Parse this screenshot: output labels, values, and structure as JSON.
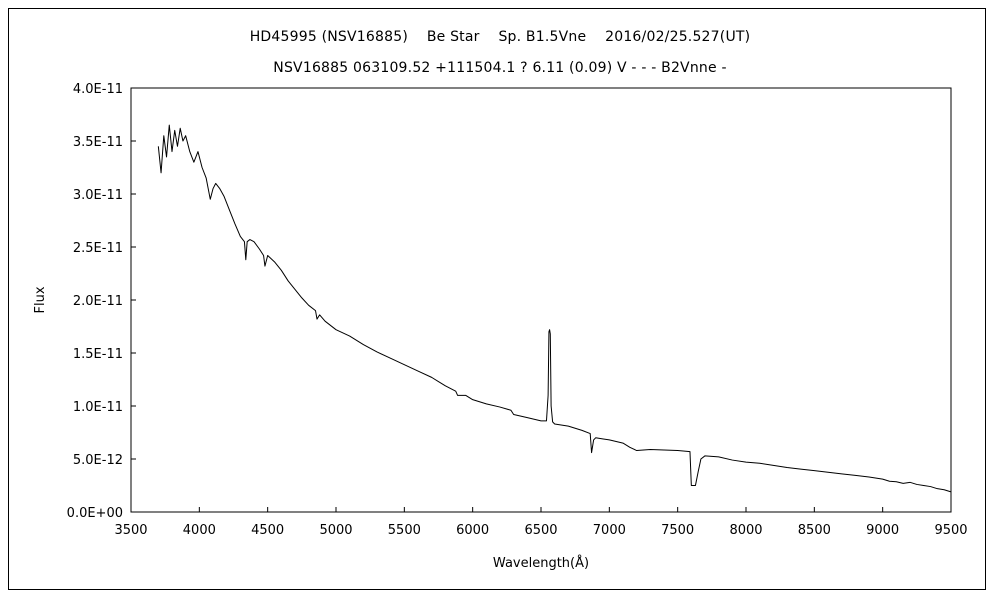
{
  "chart_data": {
    "type": "line",
    "title": "HD45995 (NSV16885)　 Be Star　 Sp. B1.5Vne　 2016/02/25.527(UT)",
    "subtitle": "NSV16885 063109.52 +111504.1 ? 6.11 (0.09) V - - - B2Vnne -",
    "xlabel": "Wavelength(Å)",
    "ylabel": "Flux",
    "xlim": [
      3500,
      9500
    ],
    "ylim": [
      0,
      4e-11
    ],
    "x_ticks": [
      3500,
      4000,
      4500,
      5000,
      5500,
      6000,
      6500,
      7000,
      7500,
      8000,
      8500,
      9000,
      9500
    ],
    "y_ticks": [
      0,
      5e-12,
      1e-11,
      1.5e-11,
      2e-11,
      2.5e-11,
      3e-11,
      3.5e-11,
      4e-11
    ],
    "x_tick_labels": [
      "3500",
      "4000",
      "4500",
      "5000",
      "5500",
      "6000",
      "6500",
      "7000",
      "7500",
      "8000",
      "8500",
      "9000",
      "9500"
    ],
    "y_tick_labels": [
      "0.0E+00",
      "5.0E-12",
      "1.0E-11",
      "1.5E-11",
      "2.0E-11",
      "2.5E-11",
      "3.0E-11",
      "3.5E-11",
      "4.0E-11"
    ],
    "grid": false,
    "series": [
      {
        "color": "#000000",
        "x": [
          3700,
          3720,
          3740,
          3760,
          3780,
          3800,
          3820,
          3840,
          3860,
          3880,
          3900,
          3930,
          3960,
          3990,
          4020,
          4050,
          4080,
          4100,
          4120,
          4150,
          4180,
          4220,
          4260,
          4300,
          4330,
          4340,
          4350,
          4370,
          4400,
          4440,
          4470,
          4480,
          4500,
          4550,
          4600,
          4650,
          4700,
          4750,
          4800,
          4850,
          4861,
          4880,
          4920,
          4960,
          5000,
          5100,
          5200,
          5300,
          5400,
          5500,
          5600,
          5700,
          5800,
          5876,
          5890,
          5950,
          6000,
          6100,
          6200,
          6280,
          6300,
          6400,
          6500,
          6540,
          6552,
          6558,
          6563,
          6568,
          6574,
          6585,
          6600,
          6700,
          6800,
          6860,
          6870,
          6885,
          6900,
          6950,
          7000,
          7100,
          7150,
          7200,
          7300,
          7400,
          7500,
          7590,
          7600,
          7630,
          7650,
          7670,
          7700,
          7800,
          7900,
          8000,
          8100,
          8200,
          8300,
          8400,
          8500,
          8600,
          8700,
          8800,
          8900,
          9000,
          9050,
          9100,
          9150,
          9200,
          9250,
          9300,
          9350,
          9400,
          9450,
          9500
        ],
        "y": [
          3.45e-11,
          3.2e-11,
          3.55e-11,
          3.35e-11,
          3.65e-11,
          3.4e-11,
          3.6e-11,
          3.45e-11,
          3.62e-11,
          3.5e-11,
          3.55e-11,
          3.4e-11,
          3.3e-11,
          3.4e-11,
          3.25e-11,
          3.15e-11,
          2.95e-11,
          3.05e-11,
          3.1e-11,
          3.05e-11,
          2.98e-11,
          2.85e-11,
          2.72e-11,
          2.6e-11,
          2.55e-11,
          2.38e-11,
          2.55e-11,
          2.57e-11,
          2.55e-11,
          2.48e-11,
          2.42e-11,
          2.32e-11,
          2.42e-11,
          2.36e-11,
          2.28e-11,
          2.18e-11,
          2.1e-11,
          2.02e-11,
          1.95e-11,
          1.9e-11,
          1.82e-11,
          1.86e-11,
          1.8e-11,
          1.76e-11,
          1.72e-11,
          1.66e-11,
          1.58e-11,
          1.51e-11,
          1.45e-11,
          1.39e-11,
          1.33e-11,
          1.27e-11,
          1.19e-11,
          1.14e-11,
          1.1e-11,
          1.1e-11,
          1.06e-11,
          1.02e-11,
          9.9e-12,
          9.6e-12,
          9.2e-12,
          8.9e-12,
          8.6e-12,
          8.6e-12,
          1.1e-11,
          1.7e-11,
          1.72e-11,
          1.68e-11,
          1e-11,
          8.5e-12,
          8.3e-12,
          8.1e-12,
          7.7e-12,
          7.4e-12,
          5.6e-12,
          6.8e-12,
          7e-12,
          6.9e-12,
          6.8e-12,
          6.5e-12,
          6.1e-12,
          5.8e-12,
          5.9e-12,
          5.85e-12,
          5.8e-12,
          5.7e-12,
          2.5e-12,
          2.5e-12,
          3.8e-12,
          5e-12,
          5.3e-12,
          5.2e-12,
          4.9e-12,
          4.7e-12,
          4.6e-12,
          4.4e-12,
          4.2e-12,
          4.05e-12,
          3.9e-12,
          3.75e-12,
          3.6e-12,
          3.45e-12,
          3.3e-12,
          3.1e-12,
          2.9e-12,
          2.85e-12,
          2.7e-12,
          2.8e-12,
          2.6e-12,
          2.5e-12,
          2.4e-12,
          2.2e-12,
          2.1e-12,
          1.9e-12
        ]
      }
    ]
  }
}
